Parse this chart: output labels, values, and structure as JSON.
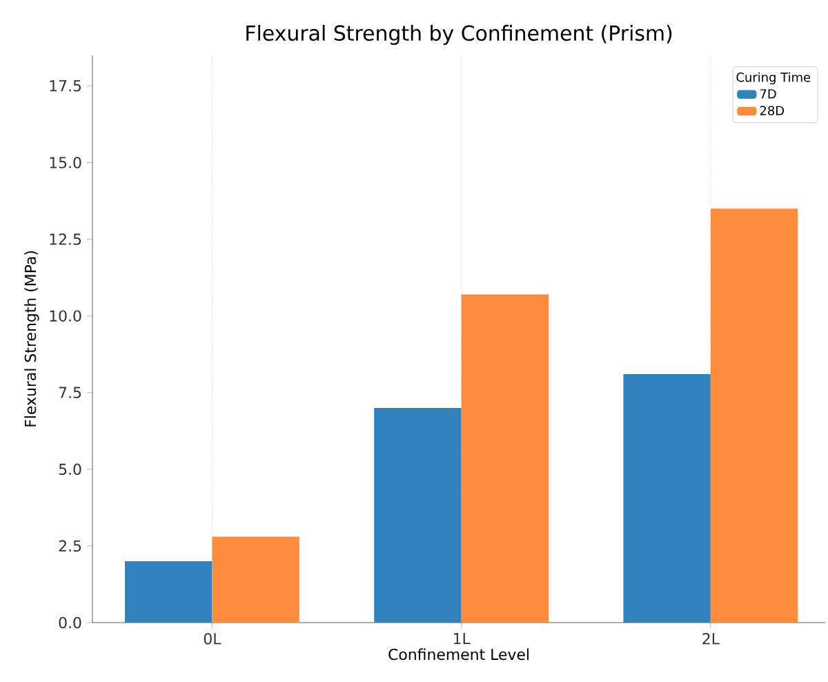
{
  "chart_data": {
    "type": "bar",
    "title": "Flexural Strength by Confinement (Prism)",
    "xlabel": "Confinement Level",
    "ylabel": "Flexural Strength (MPa)",
    "legend_title": "Curing Time",
    "categories": [
      "0L",
      "1L",
      "2L"
    ],
    "series": [
      {
        "name": "7D",
        "color": "#3182bd",
        "values": [
          2.0,
          7.0,
          8.1
        ]
      },
      {
        "name": "28D",
        "color": "#fd8d3c",
        "values": [
          2.8,
          10.7,
          13.5
        ]
      }
    ],
    "ylim": [
      0,
      18.5
    ],
    "yticks": [
      {
        "value": 0,
        "label": "0.0"
      },
      2.5,
      {
        "value": 5,
        "label": "5.0"
      },
      7.5,
      {
        "value": 10,
        "label": "10.0"
      },
      12.5,
      {
        "value": 15,
        "label": "15.0"
      },
      17.5
    ],
    "grid": "x",
    "legend": "top right"
  }
}
